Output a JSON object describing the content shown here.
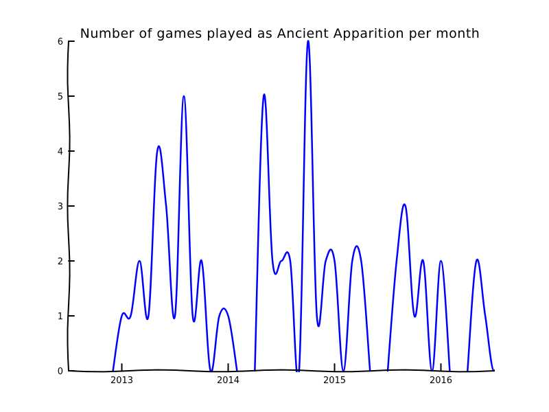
{
  "chart_data": {
    "type": "line",
    "title": "Number of games played as Ancient Apparition per month",
    "xlabel": "",
    "ylabel": "",
    "x_range": [
      "2012-07",
      "2016-07"
    ],
    "ylim": [
      0,
      6
    ],
    "grid": false,
    "style": "xkcd",
    "x_ticks": [
      {
        "date": "2013-01",
        "label": "2013"
      },
      {
        "date": "2014-01",
        "label": "2014"
      },
      {
        "date": "2015-01",
        "label": "2015"
      },
      {
        "date": "2016-01",
        "label": "2016"
      }
    ],
    "y_ticks": [
      0,
      1,
      2,
      3,
      4,
      5,
      6
    ],
    "series": [
      {
        "color": "#0000ff",
        "points": [
          {
            "x": "2012-12",
            "y": 0
          },
          {
            "x": "2013-01",
            "y": 1
          },
          {
            "x": "2013-02",
            "y": 1
          },
          {
            "x": "2013-03",
            "y": 2
          },
          {
            "x": "2013-04",
            "y": 1
          },
          {
            "x": "2013-05",
            "y": 4
          },
          {
            "x": "2013-06",
            "y": 3
          },
          {
            "x": "2013-07",
            "y": 1
          },
          {
            "x": "2013-08",
            "y": 5
          },
          {
            "x": "2013-09",
            "y": 1
          },
          {
            "x": "2013-10",
            "y": 2
          },
          {
            "x": "2013-11",
            "y": 0
          },
          {
            "x": "2013-12",
            "y": 1
          },
          {
            "x": "2014-01",
            "y": 1
          },
          {
            "x": "2014-02",
            "y": 0
          },
          {
            "x": "2014-03",
            "y": null
          },
          {
            "x": "2014-04",
            "y": 0
          },
          {
            "x": "2014-05",
            "y": 5
          },
          {
            "x": "2014-06",
            "y": 2
          },
          {
            "x": "2014-07",
            "y": 2
          },
          {
            "x": "2014-08",
            "y": 2
          },
          {
            "x": "2014-09",
            "y": 0
          },
          {
            "x": "2014-10",
            "y": 6
          },
          {
            "x": "2014-11",
            "y": 1
          },
          {
            "x": "2014-12",
            "y": 2
          },
          {
            "x": "2015-01",
            "y": 2
          },
          {
            "x": "2015-02",
            "y": 0
          },
          {
            "x": "2015-03",
            "y": 2
          },
          {
            "x": "2015-04",
            "y": 2
          },
          {
            "x": "2015-05",
            "y": 0
          },
          {
            "x": "2015-06",
            "y": null
          },
          {
            "x": "2015-07",
            "y": 0
          },
          {
            "x": "2015-08",
            "y": 2
          },
          {
            "x": "2015-09",
            "y": 3
          },
          {
            "x": "2015-10",
            "y": 1
          },
          {
            "x": "2015-11",
            "y": 2
          },
          {
            "x": "2015-12",
            "y": 0
          },
          {
            "x": "2016-01",
            "y": 2
          },
          {
            "x": "2016-02",
            "y": 0
          },
          {
            "x": "2016-03",
            "y": null
          },
          {
            "x": "2016-04",
            "y": 0
          },
          {
            "x": "2016-05",
            "y": 2
          },
          {
            "x": "2016-06",
            "y": 1
          },
          {
            "x": "2016-07",
            "y": 0
          },
          {
            "x": "2016-08",
            "y": 1
          }
        ]
      }
    ]
  }
}
